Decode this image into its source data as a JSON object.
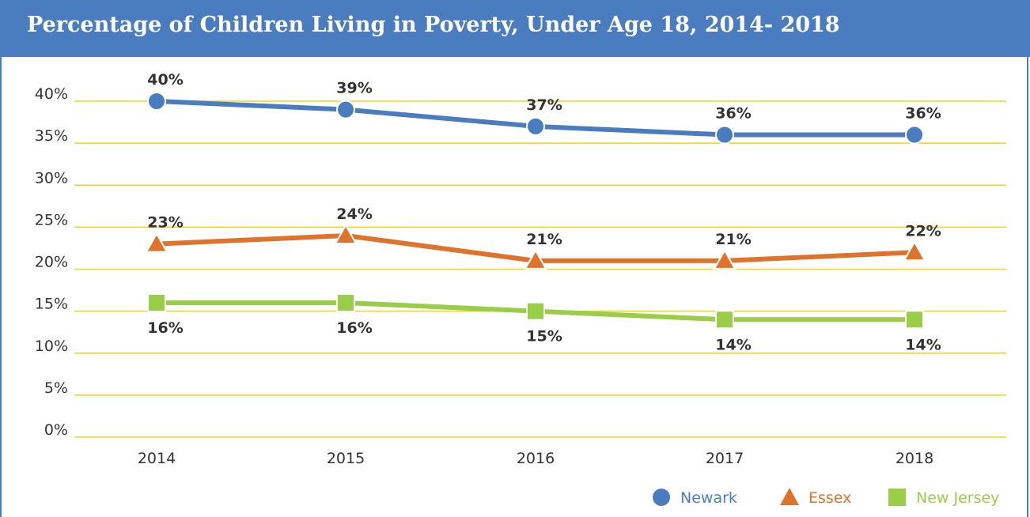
{
  "chart_data": {
    "type": "line",
    "title": "Percentage of Children Living in Poverty, Under Age 18, 2014- 2018",
    "x": [
      "2014",
      "2015",
      "2016",
      "2017",
      "2018"
    ],
    "y_ticks": [
      "0%",
      "5%",
      "10%",
      "15%",
      "20%",
      "25%",
      "30%",
      "35%",
      "40%"
    ],
    "ylim": [
      0,
      40
    ],
    "grid": true,
    "legend_position": "bottom-right",
    "series": [
      {
        "name": "Newark",
        "values": [
          40,
          39,
          37,
          36,
          36
        ],
        "labels": [
          "40%",
          "39%",
          "37%",
          "36%",
          "36%"
        ],
        "color": "#4a7cc0",
        "marker": "circle",
        "label_position": "above"
      },
      {
        "name": "Essex",
        "values": [
          23,
          24,
          21,
          21,
          22
        ],
        "labels": [
          "23%",
          "24%",
          "21%",
          "21%",
          "22%"
        ],
        "color": "#e0732b",
        "marker": "triangle",
        "label_position": "above"
      },
      {
        "name": "New Jersey",
        "values": [
          16,
          16,
          15,
          14,
          14
        ],
        "labels": [
          "16%",
          "16%",
          "15%",
          "14%",
          "14%"
        ],
        "color": "#9acd48",
        "marker": "square",
        "label_position": "below"
      }
    ],
    "colors": {
      "header": "#4a7cc0",
      "grid": "#f2d21b"
    }
  }
}
